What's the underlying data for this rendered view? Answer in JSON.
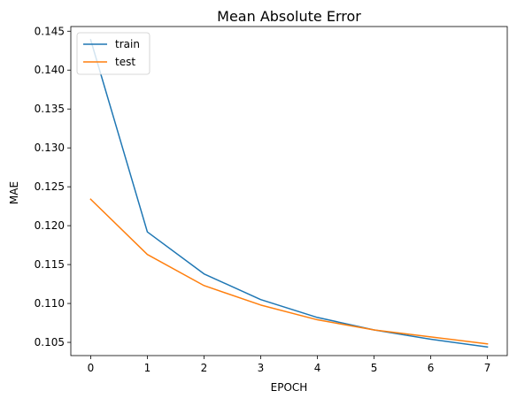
{
  "chart_data": {
    "type": "line",
    "title": "Mean Absolute Error",
    "xlabel": "EPOCH",
    "ylabel": "MAE",
    "x": [
      0,
      1,
      2,
      3,
      4,
      5,
      6,
      7
    ],
    "xlim": [
      -0.35,
      7.35
    ],
    "ylim": [
      0.1033,
      0.1456
    ],
    "xticks": [
      0,
      1,
      2,
      3,
      4,
      5,
      6,
      7
    ],
    "yticks": [
      0.105,
      0.11,
      0.115,
      0.12,
      0.125,
      0.13,
      0.135,
      0.14,
      0.145
    ],
    "ytick_labels": [
      "0.105",
      "0.110",
      "0.115",
      "0.120",
      "0.125",
      "0.130",
      "0.135",
      "0.140",
      "0.145"
    ],
    "grid": false,
    "legend_position": "top-left",
    "series": [
      {
        "name": "train",
        "color": "#1f77b4",
        "values": [
          0.1439,
          0.1192,
          0.1138,
          0.1105,
          0.1082,
          0.1066,
          0.1054,
          0.1044
        ]
      },
      {
        "name": "test",
        "color": "#ff7f0e",
        "values": [
          0.1234,
          0.1163,
          0.1123,
          0.1098,
          0.1079,
          0.1066,
          0.1057,
          0.1048
        ]
      }
    ]
  }
}
